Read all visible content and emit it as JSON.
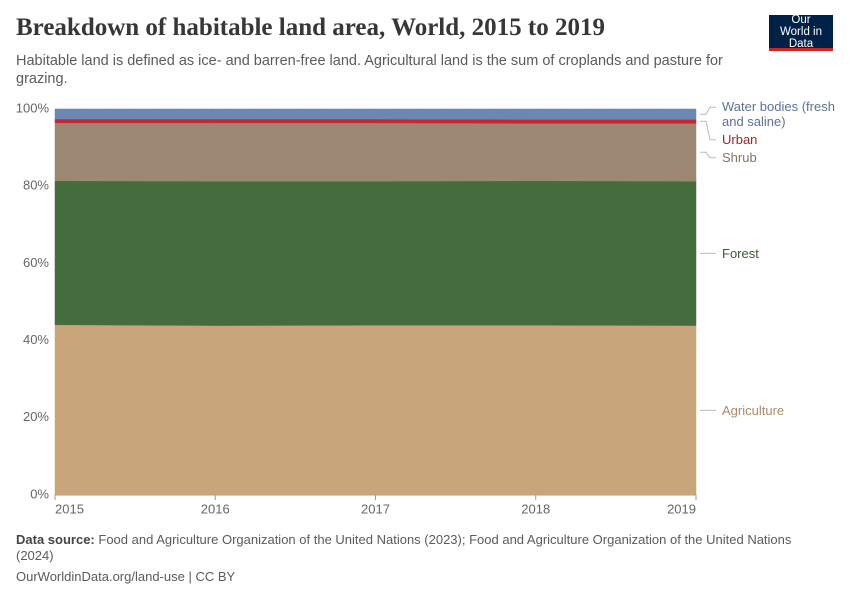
{
  "header": {
    "logo": "Our World in Data"
  },
  "chart_data": {
    "type": "stacked_area",
    "title": "Breakdown of habitable land area, World, 2015 to 2019",
    "subtitle": "Habitable land is defined as ice- and barren-free land. Agricultural land is the sum of croplands and pasture for grazing.",
    "x": [
      2015,
      2016,
      2017,
      2018,
      2019
    ],
    "xlim": [
      2015,
      2019
    ],
    "xticks": [
      2015,
      2016,
      2017,
      2018,
      2019
    ],
    "ylim": [
      0,
      100
    ],
    "yticks": [
      {
        "value": 0,
        "label": "0%"
      },
      {
        "value": 20,
        "label": "20%"
      },
      {
        "value": 40,
        "label": "40%"
      },
      {
        "value": 60,
        "label": "60%"
      },
      {
        "value": 80,
        "label": "80%"
      },
      {
        "value": 100,
        "label": "100%"
      }
    ],
    "grid": true,
    "series": [
      {
        "name": "Agriculture",
        "color": "#c8a57b",
        "values": [
          44.1,
          43.9,
          44.0,
          44.0,
          43.9
        ]
      },
      {
        "name": "Forest",
        "color": "#456c3d",
        "values": [
          37.3,
          37.4,
          37.3,
          37.4,
          37.4
        ]
      },
      {
        "name": "Shrub",
        "color": "#9c8873",
        "values": [
          15.0,
          15.1,
          15.1,
          14.9,
          15.0
        ]
      },
      {
        "name": "Urban",
        "color": "#c4292f",
        "values": [
          1.0,
          1.0,
          1.0,
          1.0,
          1.0
        ]
      },
      {
        "name": "Water bodies (fresh and saline)",
        "color": "#6d87b5",
        "values": [
          2.6,
          2.6,
          2.6,
          2.7,
          2.7
        ]
      }
    ]
  },
  "footer": {
    "source_label": "Data source:",
    "source": "Food and Agriculture Organization of the United Nations (2023); Food and Agriculture Organization of the United Nations (2024)",
    "url": "OurWorldinData.org/land-use | CC BY"
  }
}
